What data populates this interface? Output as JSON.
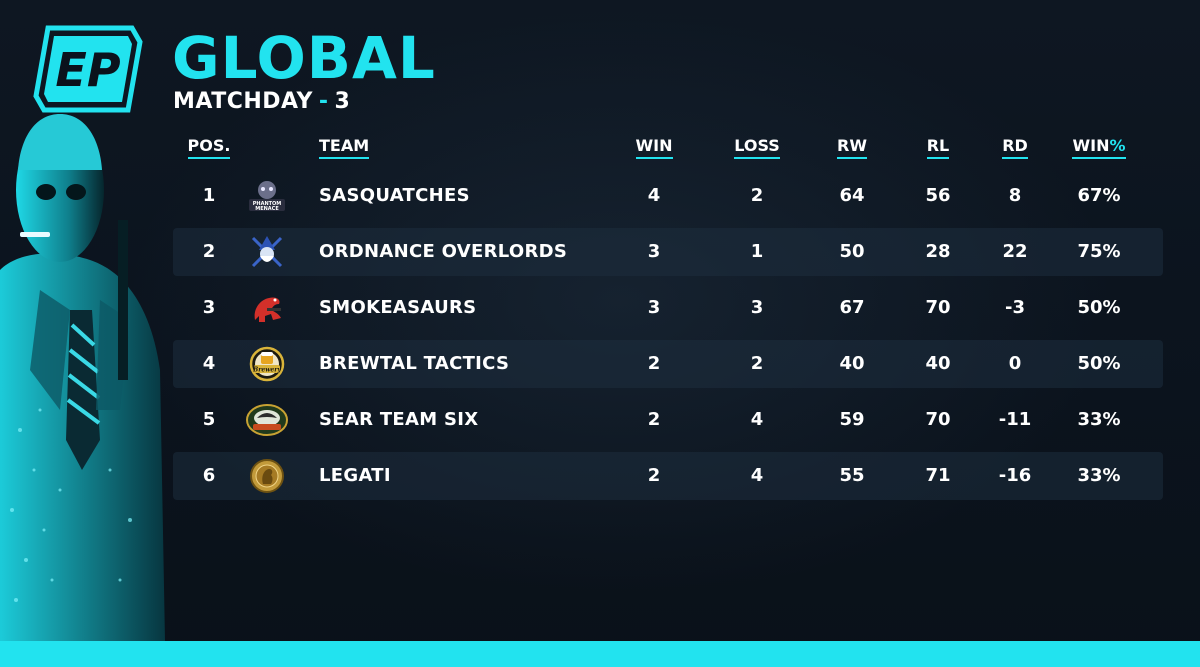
{
  "logo_text": "EP",
  "title": "GLOBAL",
  "subtitle": {
    "label": "MATCHDAY",
    "dash": "-",
    "number": "3"
  },
  "colors": {
    "accent": "#22e3ef",
    "background": "#0b121c",
    "row_shade": "#1e2d3e"
  },
  "headers": {
    "pos": "POS.",
    "team": "TEAM",
    "win": "WIN",
    "loss": "LOSS",
    "rw": "RW",
    "rl": "RL",
    "rd": "RD",
    "winpct_main": "WIN",
    "winpct_accent": "%"
  },
  "rows": [
    {
      "pos": "1",
      "team": "SASQUATCHES",
      "logo_icon": "phantom-menace-logo",
      "logo_text": "PHANTOM MENACE",
      "win": "4",
      "loss": "2",
      "rw": "64",
      "rl": "56",
      "rd": "8",
      "winpct": "67%"
    },
    {
      "pos": "2",
      "team": "ORDNANCE OVERLORDS",
      "logo_icon": "wizard-crossed-guns-logo",
      "win": "3",
      "loss": "1",
      "rw": "50",
      "rl": "28",
      "rd": "22",
      "winpct": "75%"
    },
    {
      "pos": "3",
      "team": "SMOKEASAURS",
      "logo_icon": "red-dinosaur-logo",
      "win": "3",
      "loss": "3",
      "rw": "67",
      "rl": "70",
      "rd": "-3",
      "winpct": "50%"
    },
    {
      "pos": "4",
      "team": "BREWTAL TACTICS",
      "logo_icon": "brewery-badge-logo",
      "logo_text": "Brewery",
      "win": "2",
      "loss": "2",
      "rw": "40",
      "rl": "40",
      "rd": "0",
      "winpct": "50%"
    },
    {
      "pos": "5",
      "team": "SEAR TEAM SIX",
      "logo_icon": "seahawk-badge-logo",
      "win": "2",
      "loss": "4",
      "rw": "59",
      "rl": "70",
      "rd": "-11",
      "winpct": "33%"
    },
    {
      "pos": "6",
      "team": "LEGATI",
      "logo_icon": "roman-coin-logo",
      "win": "2",
      "loss": "4",
      "rw": "55",
      "rl": "71",
      "rd": "-16",
      "winpct": "33%"
    }
  ]
}
